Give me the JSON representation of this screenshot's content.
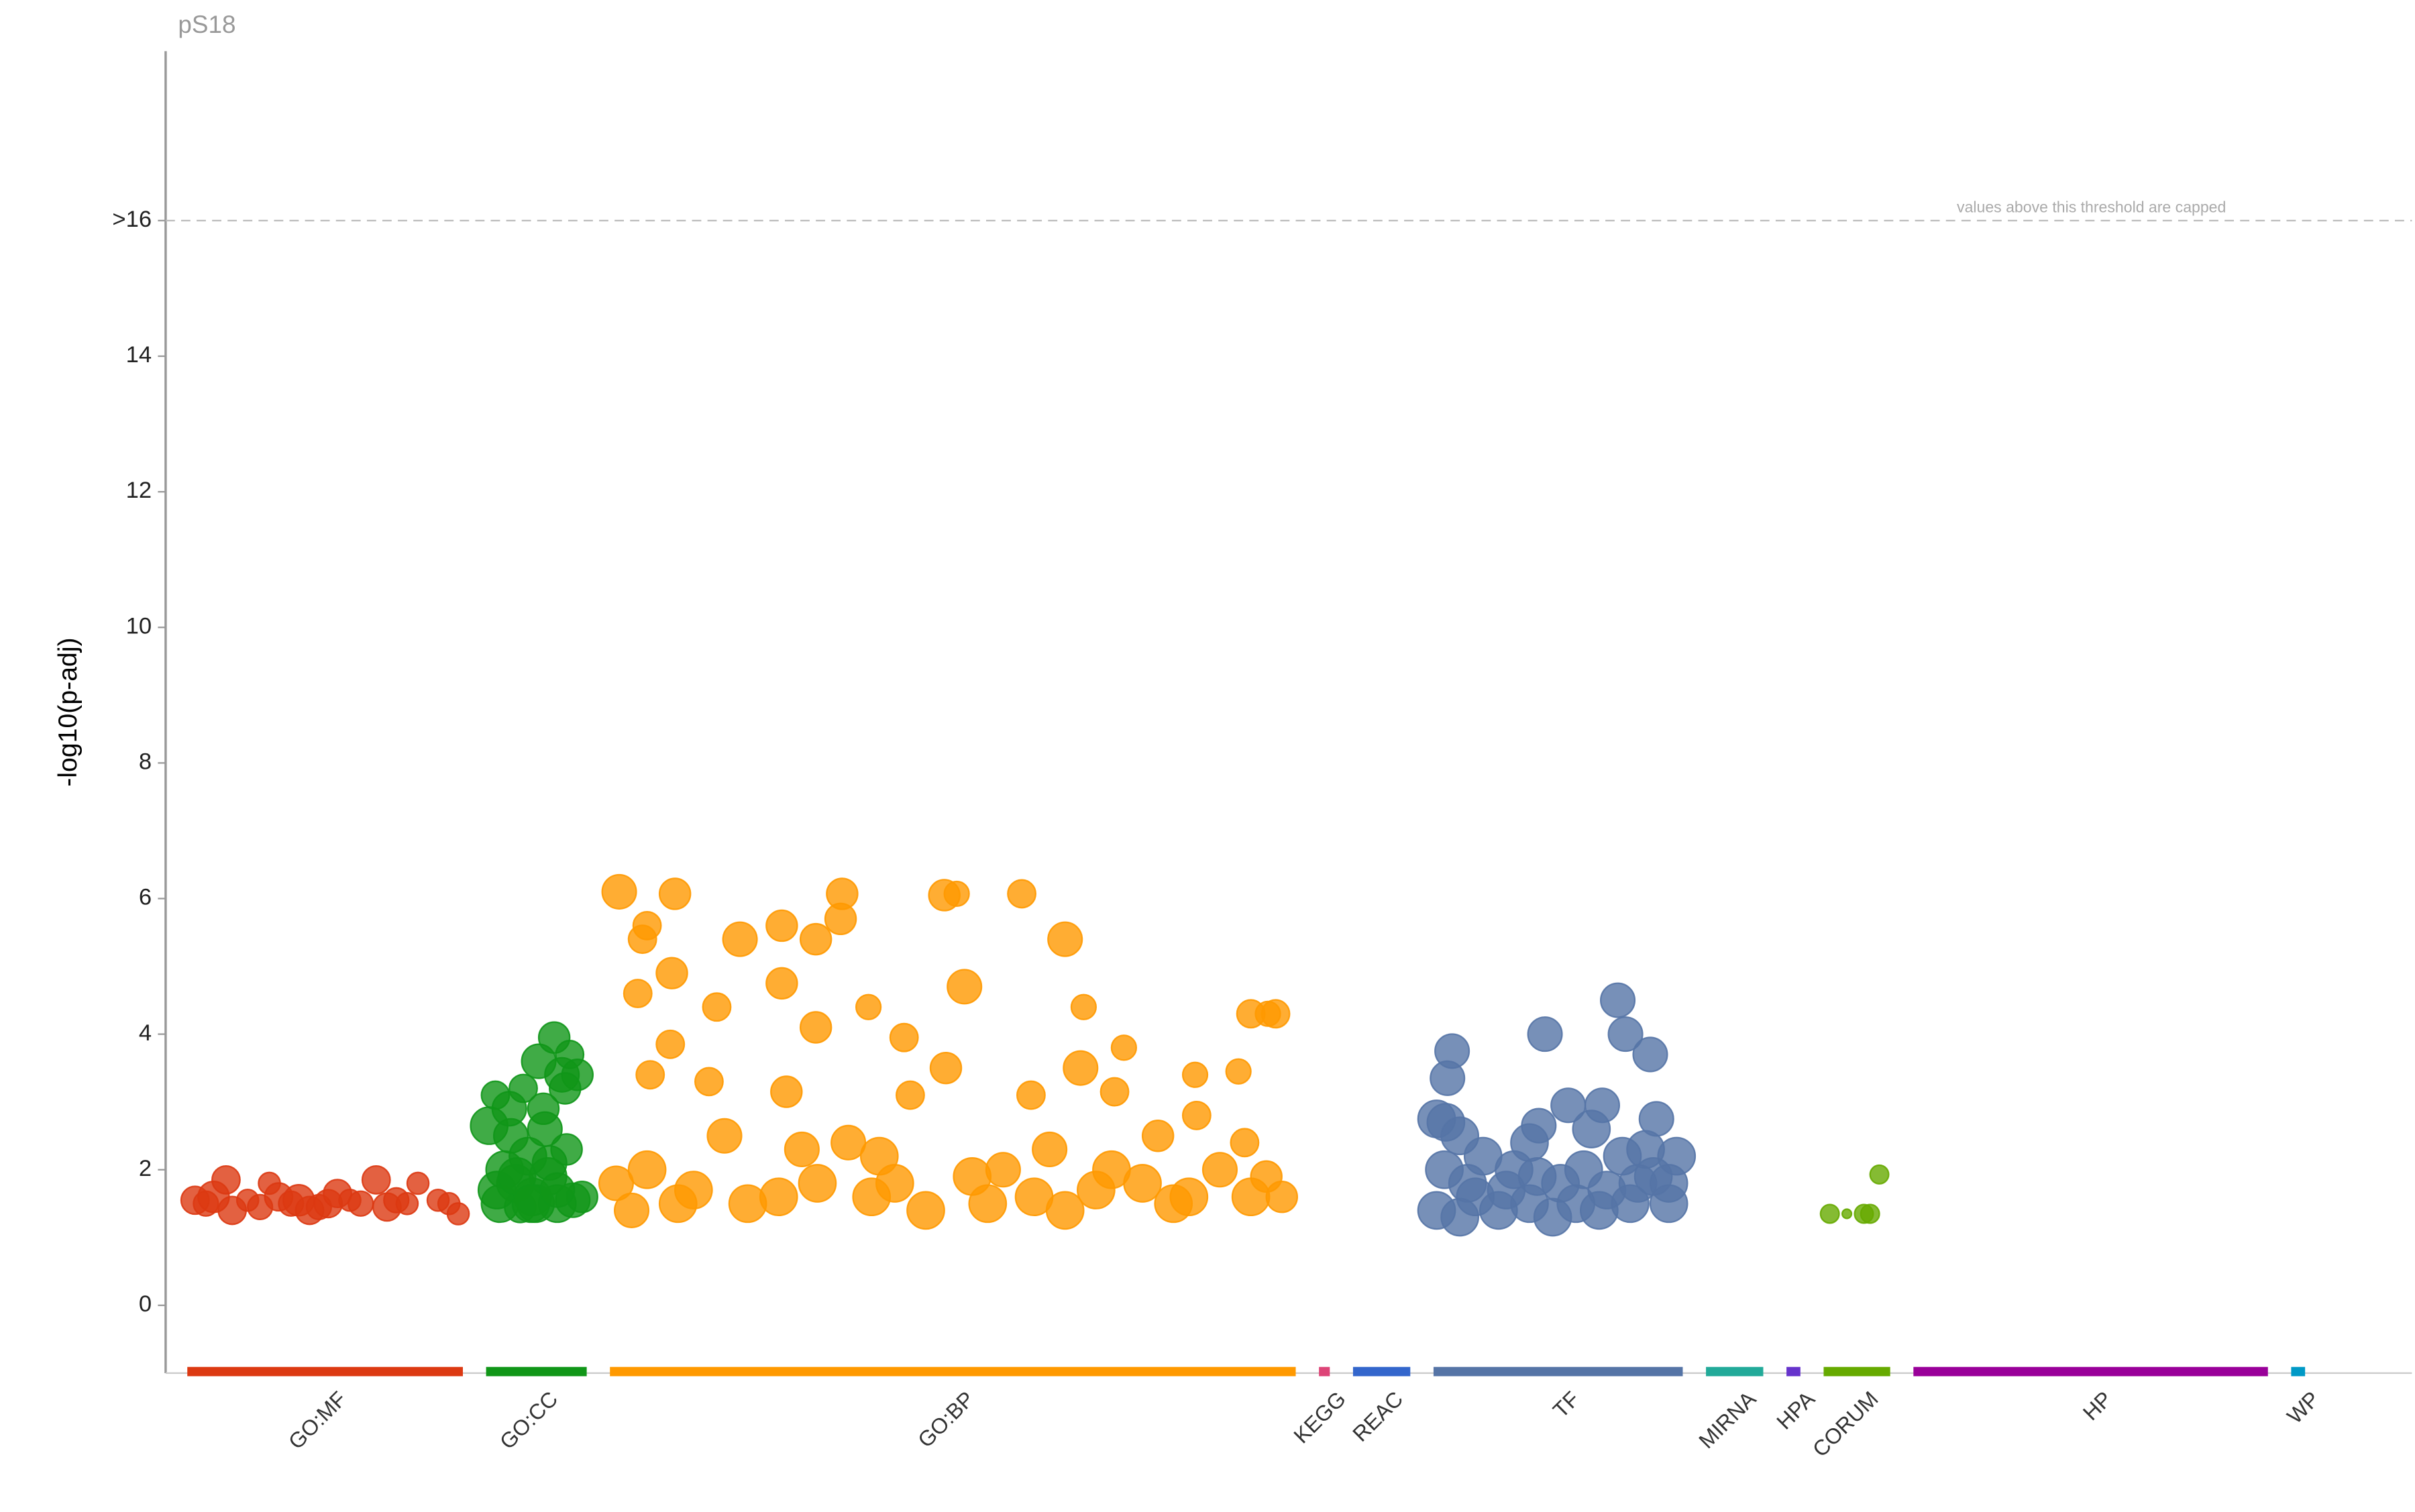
{
  "chart_data": {
    "type": "scatter",
    "title": "pS18",
    "y_label": "-log10(p-adj)",
    "annotation": "values above this threshold are capped",
    "xlim": [
      0,
      1450
    ],
    "ylim": [
      -1,
      18.5
    ],
    "yticks": [
      0,
      2,
      4,
      6,
      8,
      10,
      12,
      14,
      {
        "value": 16,
        "label": ">16"
      }
    ],
    "series": [
      {
        "name": "GO:MF",
        "color": "#dc3912",
        "range": [
          13,
          191
        ],
        "x": [
          18,
          25,
          30,
          38,
          42,
          52,
          60,
          66,
          72,
          80,
          85,
          92,
          98,
          104,
          110,
          118,
          125,
          135,
          142,
          148,
          155,
          162,
          175,
          182,
          188
        ],
        "values": [
          1.55,
          1.5,
          1.6,
          1.85,
          1.4,
          1.55,
          1.45,
          1.8,
          1.6,
          1.5,
          1.55,
          1.4,
          1.45,
          1.5,
          1.65,
          1.55,
          1.5,
          1.85,
          1.45,
          1.55,
          1.5,
          1.8,
          1.55,
          1.5,
          1.35
        ],
        "sizes": [
          9,
          8,
          10,
          9,
          9,
          7,
          8,
          7,
          9,
          8,
          10,
          9,
          8,
          9,
          9,
          7,
          8,
          9,
          9,
          8,
          7,
          7,
          7,
          7,
          7
        ]
      },
      {
        "name": "GO:CC",
        "color": "#109618",
        "range": [
          206,
          271
        ],
        "x": [
          208,
          212,
          215,
          218,
          222,
          225,
          228,
          230,
          233,
          236,
          240,
          243,
          246,
          250,
          252,
          255,
          258,
          260,
          262,
          265,
          268,
          213,
          221,
          238,
          247,
          257,
          226,
          244,
          235,
          252
        ],
        "values": [
          2.65,
          3.1,
          1.5,
          2.0,
          2.5,
          1.8,
          1.45,
          3.2,
          2.2,
          1.6,
          3.6,
          2.9,
          1.9,
          3.95,
          1.5,
          3.4,
          2.3,
          3.7,
          1.55,
          3.4,
          1.6,
          1.7,
          2.9,
          1.5,
          2.1,
          3.2,
          1.9,
          2.6,
          1.5,
          1.7
        ],
        "sizes": [
          12,
          9,
          12,
          12,
          11,
          12,
          10,
          9,
          12,
          12,
          11,
          10,
          12,
          10,
          12,
          11,
          10,
          9,
          11,
          10,
          10,
          12,
          11,
          12,
          11,
          10,
          12,
          11,
          12,
          11
        ]
      },
      {
        "name": "GO:BP",
        "color": "#ff9900",
        "range": [
          286,
          729
        ],
        "x": [
          292,
          328,
          436,
          502,
          510,
          552,
          370,
          419,
          397,
          435,
          580,
          307,
          310,
          326,
          397,
          515,
          453,
          716,
          700,
          592,
          304,
          355,
          419,
          476,
          618,
          664,
          692,
          325,
          350,
          312,
          400,
          503,
          480,
          558,
          590,
          612,
          711,
          696,
          665,
          640,
          310,
          340,
          375,
          420,
          460,
          520,
          560,
          600,
          650,
          700,
          720,
          300,
          360,
          440,
          490,
          540,
          580,
          630,
          680,
          710,
          290,
          330,
          395,
          410,
          455,
          470,
          530,
          570,
          610,
          660
        ],
        "values": [
          6.1,
          6.07,
          6.07,
          6.05,
          6.07,
          6.07,
          5.4,
          5.4,
          5.6,
          5.7,
          5.4,
          5.4,
          5.6,
          4.9,
          4.75,
          4.7,
          4.4,
          4.3,
          4.3,
          4.4,
          4.6,
          4.4,
          4.1,
          3.95,
          3.8,
          3.4,
          3.45,
          3.85,
          3.3,
          3.4,
          3.15,
          3.5,
          3.1,
          3.1,
          3.5,
          3.15,
          4.3,
          2.4,
          2.8,
          2.5,
          2.0,
          1.7,
          1.5,
          1.8,
          2.2,
          1.9,
          1.6,
          1.7,
          1.5,
          1.6,
          1.6,
          1.4,
          2.5,
          2.4,
          1.4,
          2.0,
          1.4,
          1.8,
          2.0,
          1.9,
          1.8,
          1.5,
          1.6,
          2.3,
          1.6,
          1.8,
          1.5,
          2.3,
          2.0,
          1.6
        ],
        "sizes": [
          11,
          10,
          10,
          10,
          8,
          9,
          11,
          10,
          10,
          10,
          11,
          9,
          9,
          10,
          10,
          11,
          8,
          9,
          9,
          8,
          9,
          9,
          10,
          9,
          8,
          8,
          8,
          9,
          9,
          9,
          10,
          10,
          9,
          9,
          11,
          9,
          8,
          9,
          9,
          10,
          12,
          12,
          12,
          12,
          12,
          12,
          12,
          12,
          12,
          12,
          10,
          11,
          11,
          11,
          12,
          11,
          12,
          12,
          11,
          10,
          11,
          12,
          12,
          11,
          12,
          12,
          12,
          11,
          12,
          12
        ]
      },
      {
        "name": "KEGG",
        "color": "#dd4477",
        "range": [
          744,
          751
        ]
      },
      {
        "name": "REAC",
        "color": "#3366cc",
        "range": [
          766,
          803
        ]
      },
      {
        "name": "TF",
        "color": "#5574a6",
        "range": [
          818,
          979
        ],
        "x": [
          830,
          827,
          890,
          937,
          942,
          958,
          962,
          905,
          927,
          886,
          920,
          820,
          826,
          835,
          850,
          870,
          900,
          940,
          955,
          970,
          820,
          835,
          845,
          860,
          880,
          895,
          910,
          925,
          945,
          970,
          825,
          840,
          865,
          885,
          915,
          930,
          960,
          880,
          950,
          975
        ],
        "values": [
          3.75,
          3.35,
          4.0,
          4.5,
          4.0,
          3.7,
          2.75,
          2.95,
          2.95,
          2.65,
          2.6,
          2.75,
          2.7,
          2.5,
          2.2,
          2.0,
          1.8,
          2.2,
          2.3,
          1.8,
          1.4,
          1.3,
          1.6,
          1.4,
          1.5,
          1.3,
          1.5,
          1.4,
          1.5,
          1.5,
          2.0,
          1.8,
          1.7,
          1.9,
          2.0,
          1.7,
          1.9,
          2.4,
          1.8,
          2.2
        ],
        "sizes": [
          11,
          11,
          11,
          11,
          11,
          11,
          11,
          11,
          11,
          11,
          12,
          12,
          12,
          12,
          12,
          12,
          12,
          12,
          12,
          12,
          12,
          12,
          12,
          12,
          12,
          12,
          12,
          12,
          12,
          12,
          12,
          12,
          12,
          12,
          12,
          12,
          12,
          12,
          12,
          12
        ]
      },
      {
        "name": "MIRNA",
        "color": "#22aa99",
        "range": [
          994,
          1031
        ]
      },
      {
        "name": "HPA",
        "color": "#6633cc",
        "range": [
          1046,
          1055
        ]
      },
      {
        "name": "CORUM",
        "color": "#66aa00",
        "range": [
          1070,
          1113
        ],
        "x": [
          1074,
          1085,
          1096,
          1100,
          1106
        ],
        "values": [
          1.35,
          1.35,
          1.35,
          1.35,
          1.93
        ],
        "sizes": [
          6,
          3,
          6,
          6,
          6
        ]
      },
      {
        "name": "HP",
        "color": "#990099",
        "range": [
          1128,
          1357
        ]
      },
      {
        "name": "WP",
        "color": "#0099c6",
        "range": [
          1372,
          1381
        ]
      }
    ]
  }
}
